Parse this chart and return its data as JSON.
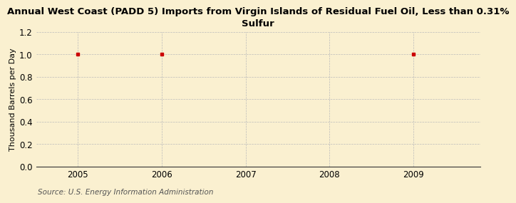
{
  "title": "Annual West Coast (PADD 5) Imports from Virgin Islands of Residual Fuel Oil, Less than 0.31%\nSulfur",
  "ylabel": "Thousand Barrels per Day",
  "source": "Source: U.S. Energy Information Administration",
  "x_data": [
    2005,
    2006,
    2009
  ],
  "y_data": [
    1.0,
    1.0,
    1.0
  ],
  "xlim": [
    2004.5,
    2009.8
  ],
  "ylim": [
    0.0,
    1.2
  ],
  "yticks": [
    0.0,
    0.2,
    0.4,
    0.6,
    0.8,
    1.0,
    1.2
  ],
  "xticks": [
    2005,
    2006,
    2007,
    2008,
    2009
  ],
  "background_color": "#FAF0D0",
  "plot_bg_color": "#FAF0D0",
  "grid_color": "#BBBBBB",
  "marker_color": "#CC0000",
  "title_fontsize": 9.5,
  "axis_label_fontsize": 8,
  "tick_fontsize": 8.5,
  "source_fontsize": 7.5
}
